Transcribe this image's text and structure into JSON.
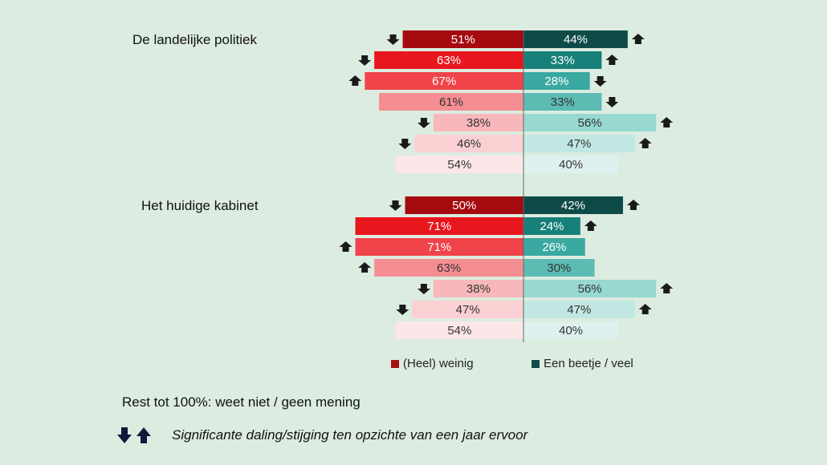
{
  "chart_data": {
    "type": "bar",
    "orientation": "horizontal-diverging",
    "groups": [
      {
        "title": "De landelijke politiek",
        "rows": [
          {
            "left": 51,
            "right": 44,
            "left_label": "51%",
            "right_label": "44%",
            "left_change": "down",
            "right_change": "up"
          },
          {
            "left": 63,
            "right": 33,
            "left_label": "63%",
            "right_label": "33%",
            "left_change": "down",
            "right_change": "up"
          },
          {
            "left": 67,
            "right": 28,
            "left_label": "67%",
            "right_label": "28%",
            "left_change": "up",
            "right_change": "down"
          },
          {
            "left": 61,
            "right": 33,
            "left_label": "61%",
            "right_label": "33%",
            "left_change": null,
            "right_change": "down"
          },
          {
            "left": 38,
            "right": 56,
            "left_label": "38%",
            "right_label": "56%",
            "left_change": "down",
            "right_change": "up"
          },
          {
            "left": 46,
            "right": 47,
            "left_label": "46%",
            "right_label": "47%",
            "left_change": "down",
            "right_change": "up"
          },
          {
            "left": 54,
            "right": 40,
            "left_label": "54%",
            "right_label": "40%",
            "left_change": null,
            "right_change": null
          }
        ]
      },
      {
        "title": "Het huidige kabinet",
        "rows": [
          {
            "left": 50,
            "right": 42,
            "left_label": "50%",
            "right_label": "42%",
            "left_change": "down",
            "right_change": "up"
          },
          {
            "left": 71,
            "right": 24,
            "left_label": "71%",
            "right_label": "24%",
            "left_change": null,
            "right_change": "up"
          },
          {
            "left": 71,
            "right": 26,
            "left_label": "71%",
            "right_label": "26%",
            "left_change": "up",
            "right_change": null
          },
          {
            "left": 63,
            "right": 30,
            "left_label": "63%",
            "right_label": "30%",
            "left_change": "up",
            "right_change": null
          },
          {
            "left": 38,
            "right": 56,
            "left_label": "38%",
            "right_label": "56%",
            "left_change": "down",
            "right_change": "up"
          },
          {
            "left": 47,
            "right": 47,
            "left_label": "47%",
            "right_label": "47%",
            "left_change": "down",
            "right_change": "up"
          },
          {
            "left": 54,
            "right": 40,
            "left_label": "54%",
            "right_label": "40%",
            "left_change": null,
            "right_change": null
          }
        ]
      }
    ],
    "legend": [
      {
        "label": "(Heel) weinig",
        "color": "#a80f12"
      },
      {
        "label": "Een beetje / veel",
        "color": "#0f4d4a"
      }
    ],
    "left_colors": [
      "#a50a0e",
      "#e8161d",
      "#f0434a",
      "#f58e92",
      "#f8b7ba",
      "#fbd0d2",
      "#fde6e7"
    ],
    "right_colors": [
      "#0e4b48",
      "#18807a",
      "#3aa9a1",
      "#5cbcb4",
      "#97d8d1",
      "#c1e7e2",
      "#dff1ee"
    ],
    "left_text_colors": [
      "#ffffff",
      "#ffffff",
      "#ffffff",
      "#333333",
      "#333333",
      "#333333",
      "#333333"
    ],
    "right_text_colors": [
      "#ffffff",
      "#ffffff",
      "#ffffff",
      "#333333",
      "#333333",
      "#333333",
      "#333333"
    ],
    "arrow_color": "#1a1a1a"
  },
  "footer": {
    "rest_note": "Rest tot 100%: weet niet / geen mening",
    "significance_note": "Significante daling/stijging ten opzichte van een jaar ervoor",
    "down_icon": "arrow-down-icon",
    "up_icon": "arrow-up-icon",
    "icon_color": "#0f1a3a"
  }
}
